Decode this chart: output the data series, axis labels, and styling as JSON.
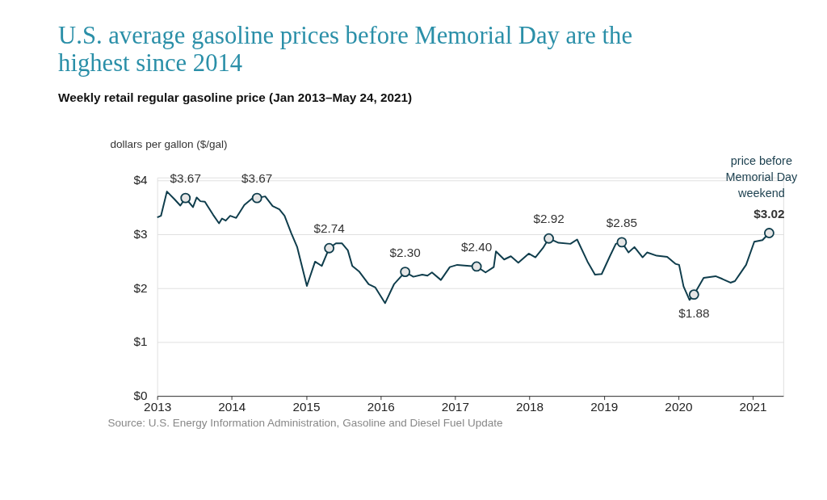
{
  "chart_data": {
    "type": "line",
    "title": "U.S. average gasoline prices before Memorial Day are the highest since 2014",
    "subtitle": "Weekly retail regular gasoline price (Jan 2013–May 24, 2021)",
    "ylabel": "dollars per gallon ($/gal)",
    "annotations": [
      "price before Memorial Day weekend",
      "Source: U.S. Energy Information Administration, Gasoline and Diesel Fuel Update"
    ],
    "xlim": [
      2013,
      2021.41
    ],
    "xticks": [
      2013,
      2014,
      2015,
      2016,
      2017,
      2018,
      2019,
      2020,
      2021
    ],
    "ylim": [
      0,
      4.05
    ],
    "yticks": [
      {
        "value": 0,
        "label": "$0"
      },
      {
        "value": 1,
        "label": "$1"
      },
      {
        "value": 2,
        "label": "$2"
      },
      {
        "value": 3,
        "label": "$3"
      },
      {
        "value": 4,
        "label": "$4"
      }
    ],
    "grid": "y",
    "series": [
      {
        "color": "#0f3d4c",
        "line_style": "solid",
        "marker": "none",
        "x": [
          2013.0,
          2013.05,
          2013.13,
          2013.23,
          2013.31,
          2013.38,
          2013.48,
          2013.53,
          2013.58,
          2013.64,
          2013.75,
          2013.83,
          2013.87,
          2013.92,
          2013.98,
          2014.06,
          2014.17,
          2014.3,
          2014.34,
          2014.45,
          2014.55,
          2014.64,
          2014.71,
          2014.8,
          2014.88,
          2015.01,
          2015.12,
          2015.21,
          2015.31,
          2015.4,
          2015.48,
          2015.56,
          2015.62,
          2015.71,
          2015.84,
          2015.93,
          2016.06,
          2016.18,
          2016.33,
          2016.44,
          2016.56,
          2016.63,
          2016.69,
          2016.81,
          2016.93,
          2017.03,
          2017.29,
          2017.41,
          2017.52,
          2017.55,
          2017.66,
          2017.75,
          2017.85,
          2017.99,
          2018.08,
          2018.18,
          2018.26,
          2018.39,
          2018.55,
          2018.64,
          2018.78,
          2018.88,
          2018.97,
          2019.08,
          2019.16,
          2019.24,
          2019.33,
          2019.41,
          2019.52,
          2019.58,
          2019.71,
          2019.85,
          2019.96,
          2020.01,
          2020.07,
          2020.15,
          2020.21,
          2020.34,
          2020.5,
          2020.59,
          2020.7,
          2020.76,
          2020.83,
          2020.91,
          2021.02,
          2021.13,
          2021.22
        ],
        "values": [
          3.31,
          3.34,
          3.79,
          3.65,
          3.53,
          3.67,
          3.5,
          3.68,
          3.61,
          3.6,
          3.36,
          3.2,
          3.29,
          3.25,
          3.34,
          3.3,
          3.54,
          3.69,
          3.67,
          3.7,
          3.52,
          3.46,
          3.34,
          3.02,
          2.76,
          2.04,
          2.49,
          2.41,
          2.74,
          2.83,
          2.83,
          2.7,
          2.41,
          2.31,
          2.07,
          2.01,
          1.72,
          2.07,
          2.3,
          2.21,
          2.25,
          2.23,
          2.29,
          2.15,
          2.39,
          2.43,
          2.4,
          2.29,
          2.39,
          2.68,
          2.53,
          2.59,
          2.47,
          2.64,
          2.57,
          2.74,
          2.92,
          2.84,
          2.82,
          2.9,
          2.49,
          2.25,
          2.26,
          2.59,
          2.82,
          2.85,
          2.66,
          2.76,
          2.57,
          2.66,
          2.6,
          2.58,
          2.45,
          2.43,
          2.03,
          1.78,
          1.88,
          2.19,
          2.22,
          2.17,
          2.1,
          2.13,
          2.27,
          2.43,
          2.86,
          2.89,
          3.02
        ]
      },
      {
        "type": "scatter",
        "color": "#0f3d4c",
        "marker": "circle",
        "x": [
          2013.38,
          2014.34,
          2015.31,
          2016.33,
          2017.29,
          2018.26,
          2019.24,
          2020.21,
          2021.22
        ],
        "values": [
          3.67,
          3.67,
          2.74,
          2.3,
          2.4,
          2.92,
          2.85,
          1.88,
          3.02
        ],
        "value_labels": [
          "$3.67",
          "$3.67",
          "$2.74",
          "$2.30",
          "$2.40",
          "$2.92",
          "$2.85",
          "$1.88",
          "$3.02"
        ]
      }
    ]
  }
}
